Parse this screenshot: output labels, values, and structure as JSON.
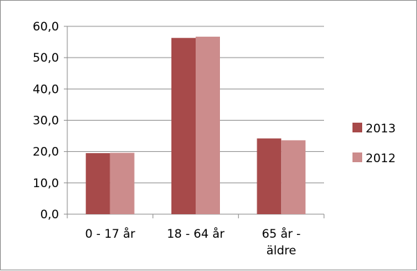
{
  "chart_data": {
    "type": "bar",
    "categories": [
      [
        "0 - 17 år"
      ],
      [
        "18 - 64 år"
      ],
      [
        "65 år -",
        "äldre"
      ]
    ],
    "series": [
      {
        "name": "2013",
        "values": [
          19.5,
          56.3,
          24.2
        ],
        "color": "#a74a4a"
      },
      {
        "name": "2012",
        "values": [
          19.6,
          56.7,
          23.6
        ],
        "color": "#cc8c8c"
      }
    ],
    "y_ticks": [
      "0,0",
      "10,0",
      "20,0",
      "30,0",
      "40,0",
      "50,0",
      "60,0"
    ],
    "ylim": [
      0,
      60
    ],
    "y_step": 10,
    "grid": true,
    "legend_position": "right"
  }
}
